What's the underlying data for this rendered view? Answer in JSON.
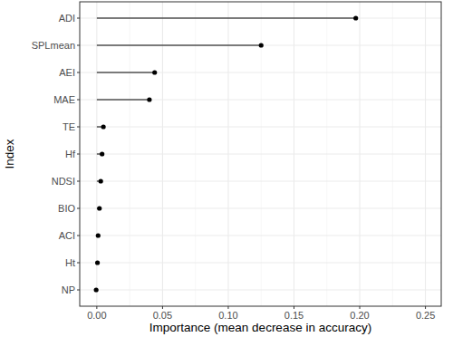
{
  "chart_data": {
    "type": "lollipop",
    "orientation": "horizontal",
    "x_label": "Importance (mean decrease in accuracy)",
    "y_label": "Index",
    "categories": [
      "ADI",
      "SPLmean",
      "AEI",
      "MAE",
      "TE",
      "Hf",
      "NDSI",
      "BIO",
      "ACI",
      "Ht",
      "NP"
    ],
    "values": [
      0.197,
      0.125,
      0.044,
      0.04,
      0.005,
      0.004,
      0.003,
      0.002,
      0.001,
      0.0005,
      -0.0005
    ],
    "color": "#000000",
    "xlim": [
      -0.013,
      0.262
    ],
    "xticks": [
      {
        "value": 0,
        "label": "0.00"
      },
      0.05,
      {
        "value": 0.1,
        "label": "0.10"
      },
      0.15,
      {
        "value": 0.2,
        "label": "0.20"
      },
      0.25
    ],
    "grid": true
  }
}
